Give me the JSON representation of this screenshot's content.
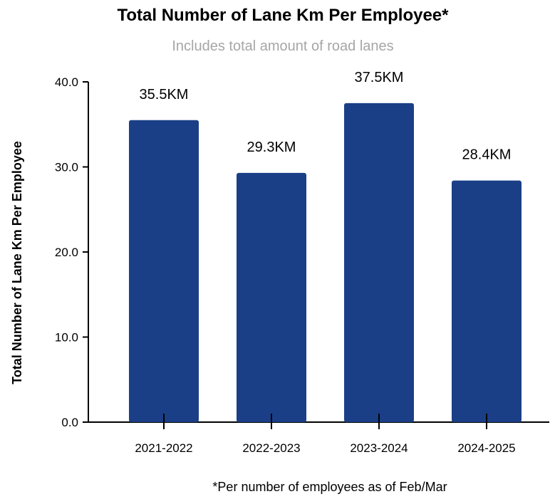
{
  "chart_data": {
    "type": "bar",
    "title": "Total Number of Lane Km Per Employee*",
    "subtitle": "Includes total amount of road lanes",
    "ylabel": "Total Number of Lane Km Per Employee",
    "xlabel": "",
    "categories": [
      "2021-2022",
      "2022-2023",
      "2023-2024",
      "2024-2025"
    ],
    "values": [
      35.5,
      29.3,
      37.5,
      28.4
    ],
    "data_labels": [
      "35.5KM",
      "29.3KM",
      "37.5KM",
      "28.4KM"
    ],
    "ylim": [
      0,
      40
    ],
    "yticks": [
      "0.0",
      "10.0",
      "20.0",
      "30.0",
      "40.0"
    ],
    "grid": false,
    "legend": "none",
    "bar_color": "#1b3f87",
    "footnote": "*Per number of employees as of Feb/Mar"
  }
}
